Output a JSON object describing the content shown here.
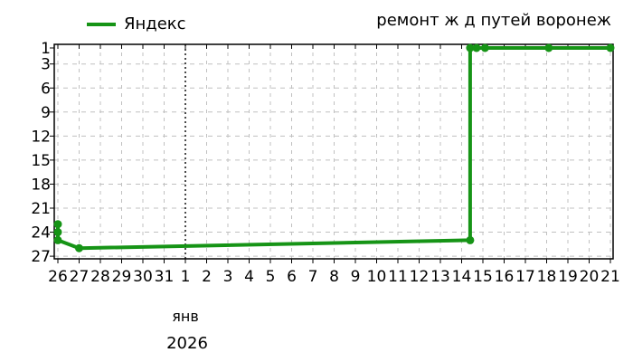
{
  "colors": {
    "series": "#169416",
    "grid": "#c0c0c0",
    "axis": "#000000",
    "month_line": "#000000",
    "text": "#000000",
    "background": "#ffffff"
  },
  "chart_data": {
    "type": "line",
    "title": "ремонт ж д путей воронеж",
    "legend": [
      {
        "name": "Яндекс",
        "color": "#169416"
      }
    ],
    "x_axis": {
      "tick_labels": [
        "26",
        "27",
        "28",
        "29",
        "30",
        "31",
        "1",
        "2",
        "3",
        "4",
        "5",
        "6",
        "7",
        "8",
        "9",
        "10",
        "11",
        "12",
        "13",
        "14",
        "15",
        "16",
        "17",
        "18",
        "19",
        "20",
        "21"
      ],
      "month_label": "янв",
      "month_label_under_tick": "1",
      "year_label": "2026",
      "month_boundary_index": 6
    },
    "y_axis": {
      "tick_labels": [
        "1",
        "3",
        "6",
        "9",
        "12",
        "15",
        "18",
        "21",
        "24",
        "27"
      ],
      "min": 1,
      "max": 27,
      "inverted": true,
      "meaning": "rank position, 1 is best (top)"
    },
    "grid": true,
    "legend_position": "top-left",
    "series": [
      {
        "name": "Яндекс",
        "color": "#169416",
        "points": [
          {
            "x": 0,
            "y": 23
          },
          {
            "x": 0,
            "y": 24
          },
          {
            "x": 0,
            "y": 25
          },
          {
            "x": 1,
            "y": 26
          },
          {
            "x": 19.4,
            "y": 25
          },
          {
            "x": 19.4,
            "y": 1
          },
          {
            "x": 19.7,
            "y": 1
          },
          {
            "x": 20.1,
            "y": 1
          },
          {
            "x": 23.1,
            "y": 1
          },
          {
            "x": 26,
            "y": 1
          }
        ]
      }
    ]
  }
}
